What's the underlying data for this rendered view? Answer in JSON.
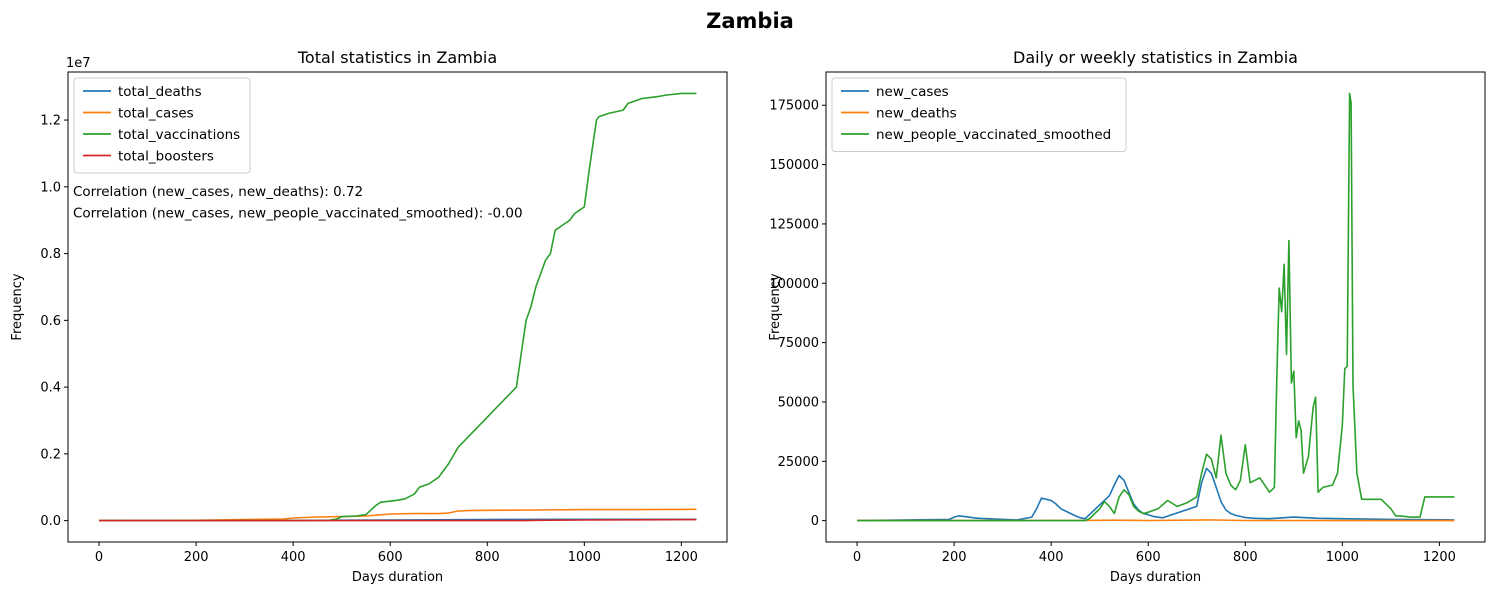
{
  "figure": {
    "suptitle": "Zambia"
  },
  "colors": {
    "blue": "#1f77b4",
    "orange": "#ff7f0e",
    "green": "#2ca02c",
    "red": "#d62728"
  },
  "chart_data": [
    {
      "type": "line",
      "title": "Total statistics in Zambia",
      "xlabel": "Days duration",
      "ylabel": "Frequency",
      "xlim": [
        -64,
        1294
      ],
      "ylim": [
        -0.064,
        1.344
      ],
      "y_scale_label": "1e7",
      "xticks": [
        0,
        200,
        400,
        600,
        800,
        1000,
        1200
      ],
      "yticks": [
        0.0,
        0.2,
        0.4,
        0.6,
        0.8,
        1.0,
        1.2
      ],
      "ytick_labels": [
        "0.0",
        "0.2",
        "0.4",
        "0.6",
        "0.8",
        "1.0",
        "1.2"
      ],
      "legend_position": "upper left",
      "annotations": [
        "Correlation (new_cases, new_deaths): 0.72",
        "Correlation (new_cases, new_people_vaccinated_smoothed): -0.00"
      ],
      "series": [
        {
          "name": "total_deaths",
          "color": "#1f77b4",
          "x": [
            0,
            200,
            400,
            600,
            780,
            1000,
            1231
          ],
          "y": [
            0,
            0.0003,
            0.0008,
            0.0019,
            0.0035,
            0.004,
            0.0041
          ]
        },
        {
          "name": "total_cases",
          "color": "#ff7f0e",
          "x": [
            0,
            200,
            300,
            380,
            400,
            450,
            500,
            550,
            600,
            650,
            700,
            720,
            740,
            760,
            800,
            900,
            1000,
            1100,
            1231
          ],
          "y": [
            0,
            0.001,
            0.003,
            0.005,
            0.008,
            0.011,
            0.012,
            0.014,
            0.02,
            0.021,
            0.021,
            0.023,
            0.029,
            0.03,
            0.031,
            0.032,
            0.033,
            0.033,
            0.034
          ]
        },
        {
          "name": "total_vaccinations",
          "color": "#2ca02c",
          "x": [
            0,
            470,
            490,
            500,
            530,
            550,
            570,
            580,
            610,
            630,
            650,
            660,
            680,
            700,
            720,
            740,
            760,
            780,
            800,
            820,
            840,
            860,
            870,
            880,
            890,
            900,
            910,
            920,
            930,
            940,
            950,
            960,
            970,
            980,
            990,
            1000,
            1010,
            1020,
            1025,
            1030,
            1050,
            1080,
            1090,
            1110,
            1120,
            1150,
            1170,
            1200,
            1231
          ],
          "y": [
            0,
            0,
            0.005,
            0.012,
            0.014,
            0.018,
            0.045,
            0.055,
            0.06,
            0.065,
            0.08,
            0.1,
            0.11,
            0.13,
            0.17,
            0.22,
            0.25,
            0.28,
            0.31,
            0.34,
            0.37,
            0.4,
            0.5,
            0.6,
            0.64,
            0.7,
            0.74,
            0.78,
            0.8,
            0.87,
            0.88,
            0.89,
            0.9,
            0.92,
            0.93,
            0.94,
            1.05,
            1.15,
            1.2,
            1.21,
            1.22,
            1.23,
            1.25,
            1.26,
            1.265,
            1.27,
            1.275,
            1.28,
            1.28
          ]
        },
        {
          "name": "total_boosters",
          "color": "#d62728",
          "x": [
            0,
            880,
            900,
            1000,
            1231
          ],
          "y": [
            0,
            0,
            0.001,
            0.002,
            0.003
          ]
        }
      ]
    },
    {
      "type": "line",
      "title": "Daily or weekly statistics in Zambia",
      "xlabel": "Days duration",
      "ylabel": "Frequency",
      "xlim": [
        -64,
        1294
      ],
      "ylim": [
        -9000,
        189000
      ],
      "xticks": [
        0,
        200,
        400,
        600,
        800,
        1000,
        1200
      ],
      "yticks": [
        0,
        25000,
        50000,
        75000,
        100000,
        125000,
        150000,
        175000
      ],
      "ytick_labels": [
        "0",
        "25000",
        "50000",
        "75000",
        "100000",
        "125000",
        "150000",
        "175000"
      ],
      "legend_position": "upper left",
      "series": [
        {
          "name": "new_cases",
          "color": "#1f77b4",
          "x": [
            0,
            190,
            200,
            210,
            220,
            230,
            240,
            250,
            260,
            270,
            290,
            330,
            360,
            370,
            380,
            390,
            400,
            410,
            420,
            430,
            440,
            450,
            460,
            470,
            520,
            530,
            540,
            550,
            560,
            570,
            580,
            590,
            600,
            610,
            630,
            700,
            710,
            720,
            730,
            740,
            750,
            760,
            770,
            780,
            790,
            800,
            820,
            850,
            900,
            950,
            1000,
            1100,
            1231
          ],
          "y": [
            0,
            500,
            1500,
            2000,
            1800,
            1500,
            1200,
            1000,
            900,
            800,
            600,
            300,
            1500,
            5000,
            9500,
            9000,
            8500,
            7000,
            5000,
            4000,
            3000,
            2000,
            1200,
            800,
            10500,
            15000,
            19000,
            17000,
            12000,
            7000,
            4500,
            3000,
            2500,
            1800,
            1200,
            6000,
            16000,
            22000,
            20000,
            14000,
            8000,
            4500,
            3000,
            2200,
            1800,
            1300,
            1000,
            800,
            1500,
            1000,
            800,
            500,
            300
          ]
        },
        {
          "name": "new_deaths",
          "color": "#ff7f0e",
          "x": [
            0,
            380,
            400,
            450,
            530,
            560,
            600,
            720,
            740,
            800,
            1231
          ],
          "y": [
            0,
            50,
            100,
            60,
            200,
            150,
            50,
            300,
            250,
            50,
            10
          ]
        },
        {
          "name": "new_people_vaccinated_smoothed",
          "color": "#2ca02c",
          "x": [
            0,
            470,
            480,
            490,
            500,
            510,
            520,
            530,
            540,
            550,
            560,
            570,
            580,
            590,
            600,
            620,
            640,
            660,
            680,
            700,
            710,
            720,
            730,
            740,
            750,
            760,
            770,
            780,
            790,
            800,
            810,
            830,
            840,
            850,
            860,
            865,
            870,
            875,
            880,
            885,
            890,
            895,
            900,
            905,
            910,
            915,
            920,
            930,
            940,
            945,
            950,
            960,
            980,
            990,
            1000,
            1005,
            1010,
            1015,
            1018,
            1022,
            1030,
            1040,
            1050,
            1080,
            1100,
            1110,
            1120,
            1140,
            1160,
            1170,
            1231
          ],
          "y": [
            0,
            0,
            1000,
            3000,
            5000,
            8000,
            6000,
            3000,
            10000,
            13000,
            11000,
            6000,
            4000,
            3000,
            3500,
            5000,
            8500,
            6000,
            7500,
            10000,
            20000,
            28000,
            26000,
            18000,
            36000,
            20000,
            15000,
            13000,
            17000,
            32000,
            16000,
            18000,
            15000,
            12000,
            14000,
            60000,
            98000,
            88000,
            108000,
            70000,
            118000,
            58000,
            63000,
            35000,
            42000,
            38000,
            20000,
            27000,
            48000,
            52000,
            12000,
            14000,
            15000,
            20000,
            40000,
            64000,
            65000,
            180000,
            176000,
            57000,
            20000,
            9000,
            9000,
            9000,
            5000,
            2000,
            2000,
            1500,
            1500,
            10000,
            10000
          ]
        }
      ]
    }
  ]
}
